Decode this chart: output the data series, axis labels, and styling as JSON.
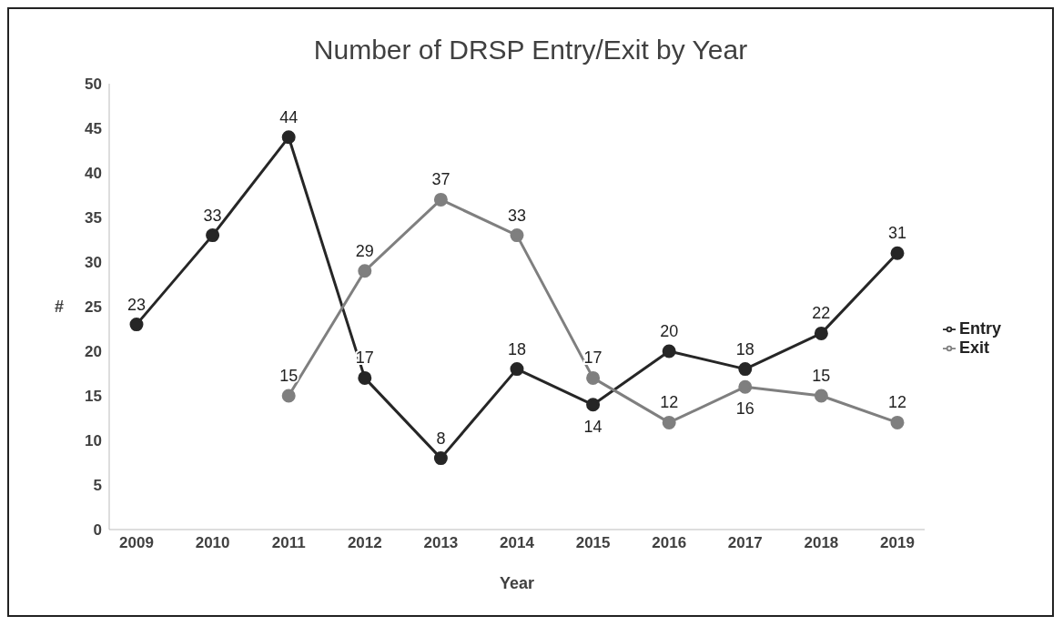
{
  "chart_data": {
    "type": "line",
    "title": "Number of DRSP Entry/Exit by Year",
    "xlabel": "Year",
    "ylabel": "#",
    "categories": [
      "2009",
      "2010",
      "2011",
      "2012",
      "2013",
      "2014",
      "2015",
      "2016",
      "2017",
      "2018",
      "2019"
    ],
    "series": [
      {
        "name": "Entry",
        "color": "#262626",
        "values": [
          23,
          33,
          44,
          17,
          8,
          18,
          14,
          20,
          18,
          22,
          31
        ]
      },
      {
        "name": "Exit",
        "color": "#7f7f7f",
        "values": [
          null,
          null,
          15,
          29,
          37,
          33,
          17,
          12,
          16,
          15,
          12
        ]
      }
    ],
    "ylim": [
      0,
      50
    ],
    "yticks": [
      0,
      5,
      10,
      15,
      20,
      25,
      30,
      35,
      40,
      45,
      50
    ],
    "grid": false,
    "legend": "right",
    "marker": "circle",
    "line_style": "solid",
    "data_labels": true
  }
}
